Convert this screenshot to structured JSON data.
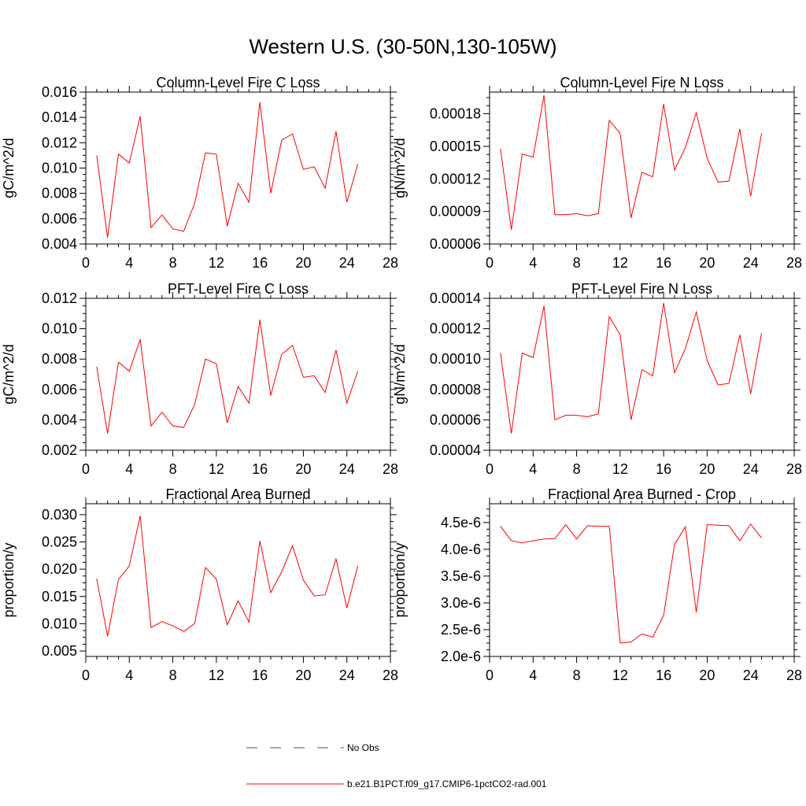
{
  "figure": {
    "title": "Western U.S. (30-50N,130-105W)"
  },
  "chart_data": [
    {
      "type": "line",
      "title": "Column-Level Fire C Loss",
      "xlabel": "",
      "ylabel": "gC/m^2/d",
      "xlim": [
        0,
        28
      ],
      "ylim": [
        0.004,
        0.016
      ],
      "xticks": [
        0,
        4,
        8,
        12,
        16,
        20,
        24,
        28
      ],
      "yticks": [
        0.004,
        0.006,
        0.008,
        0.01,
        0.012,
        0.014,
        0.016
      ],
      "ytick_labels": [
        "0.004",
        "0.006",
        "0.008",
        "0.010",
        "0.012",
        "0.014",
        "0.016"
      ],
      "x": [
        1,
        2,
        3,
        4,
        5,
        6,
        7,
        8,
        9,
        10,
        11,
        12,
        13,
        14,
        15,
        16,
        17,
        18,
        19,
        20,
        21,
        22,
        23,
        24,
        25
      ],
      "series": [
        {
          "color": "#ff0000",
          "values": [
            0.011,
            0.0045,
            0.0111,
            0.0104,
            0.0141,
            0.0053,
            0.0063,
            0.0052,
            0.005,
            0.0072,
            0.0112,
            0.0111,
            0.0054,
            0.0088,
            0.0073,
            0.0152,
            0.008,
            0.0122,
            0.0127,
            0.0099,
            0.0101,
            0.0084,
            0.0129,
            0.0073,
            0.0103
          ]
        }
      ]
    },
    {
      "type": "line",
      "title": "Column-Level Fire N Loss",
      "xlabel": "",
      "ylabel": "gN/m^2/d",
      "xlim": [
        0,
        28
      ],
      "ylim": [
        6e-05,
        0.0002
      ],
      "xticks": [
        0,
        4,
        8,
        12,
        16,
        20,
        24,
        28
      ],
      "yticks": [
        6e-05,
        9e-05,
        0.00012,
        0.00015,
        0.00018
      ],
      "ytick_labels": [
        "0.00006",
        "0.00009",
        "0.00012",
        "0.00015",
        "0.00018"
      ],
      "x": [
        1,
        2,
        3,
        4,
        5,
        6,
        7,
        8,
        9,
        10,
        11,
        12,
        13,
        14,
        15,
        16,
        17,
        18,
        19,
        20,
        21,
        22,
        23,
        24,
        25
      ],
      "series": [
        {
          "color": "#ff0000",
          "values": [
            0.000148,
            7.3e-05,
            0.000143,
            0.00014,
            0.000197,
            8.7e-05,
            8.7e-05,
            8.8e-05,
            8.6e-05,
            8.8e-05,
            0.000174,
            0.000162,
            8.4e-05,
            0.000126,
            0.000122,
            0.000189,
            0.000128,
            0.000149,
            0.000181,
            0.000139,
            0.000117,
            0.000118,
            0.000166,
            0.000104,
            0.000162
          ]
        }
      ]
    },
    {
      "type": "line",
      "title": "PFT-Level Fire C Loss",
      "xlabel": "",
      "ylabel": "gC/m^2/d",
      "xlim": [
        0,
        28
      ],
      "ylim": [
        0.002,
        0.012
      ],
      "xticks": [
        0,
        4,
        8,
        12,
        16,
        20,
        24,
        28
      ],
      "yticks": [
        0.002,
        0.004,
        0.006,
        0.008,
        0.01,
        0.012
      ],
      "ytick_labels": [
        "0.002",
        "0.004",
        "0.006",
        "0.008",
        "0.010",
        "0.012"
      ],
      "x": [
        1,
        2,
        3,
        4,
        5,
        6,
        7,
        8,
        9,
        10,
        11,
        12,
        13,
        14,
        15,
        16,
        17,
        18,
        19,
        20,
        21,
        22,
        23,
        24,
        25
      ],
      "series": [
        {
          "color": "#ff0000",
          "values": [
            0.0075,
            0.0031,
            0.0078,
            0.0072,
            0.0093,
            0.0036,
            0.0045,
            0.0036,
            0.0035,
            0.005,
            0.008,
            0.0077,
            0.0038,
            0.0062,
            0.0051,
            0.0106,
            0.0056,
            0.0083,
            0.0089,
            0.0068,
            0.0069,
            0.0058,
            0.0086,
            0.0051,
            0.0072
          ]
        }
      ]
    },
    {
      "type": "line",
      "title": "PFT-Level Fire N Loss",
      "xlabel": "",
      "ylabel": "gN/m^2/d",
      "xlim": [
        0,
        28
      ],
      "ylim": [
        4e-05,
        0.00014
      ],
      "xticks": [
        0,
        4,
        8,
        12,
        16,
        20,
        24,
        28
      ],
      "yticks": [
        4e-05,
        6e-05,
        8e-05,
        0.0001,
        0.00012,
        0.00014
      ],
      "ytick_labels": [
        "0.00004",
        "0.00006",
        "0.00008",
        "0.00010",
        "0.00012",
        "0.00014"
      ],
      "x": [
        1,
        2,
        3,
        4,
        5,
        6,
        7,
        8,
        9,
        10,
        11,
        12,
        13,
        14,
        15,
        16,
        17,
        18,
        19,
        20,
        21,
        22,
        23,
        24,
        25
      ],
      "series": [
        {
          "color": "#ff0000",
          "values": [
            0.000104,
            5.1e-05,
            0.000104,
            0.000101,
            0.000135,
            6e-05,
            6.3e-05,
            6.3e-05,
            6.2e-05,
            6.4e-05,
            0.000128,
            0.000116,
            6e-05,
            9.3e-05,
            8.9e-05,
            0.000137,
            9.1e-05,
            0.000107,
            0.000131,
            9.9e-05,
            8.3e-05,
            8.4e-05,
            0.000116,
            7.7e-05,
            0.000117
          ]
        }
      ]
    },
    {
      "type": "line",
      "title": "Fractional Area Burned",
      "xlabel": "",
      "ylabel": "proportion/y",
      "xlim": [
        0,
        28
      ],
      "ylim": [
        0.004,
        0.032
      ],
      "xticks": [
        0,
        4,
        8,
        12,
        16,
        20,
        24,
        28
      ],
      "yticks": [
        0.005,
        0.01,
        0.015,
        0.02,
        0.025,
        0.03
      ],
      "ytick_labels": [
        "0.005",
        "0.010",
        "0.015",
        "0.020",
        "0.025",
        "0.030"
      ],
      "x": [
        1,
        2,
        3,
        4,
        5,
        6,
        7,
        8,
        9,
        10,
        11,
        12,
        13,
        14,
        15,
        16,
        17,
        18,
        19,
        20,
        21,
        22,
        23,
        24,
        25
      ],
      "series": [
        {
          "color": "#ff0000",
          "values": [
            0.0183,
            0.0077,
            0.0181,
            0.0206,
            0.0298,
            0.0093,
            0.0104,
            0.0096,
            0.0086,
            0.01,
            0.0203,
            0.0182,
            0.0098,
            0.0142,
            0.0103,
            0.0252,
            0.0157,
            0.0195,
            0.0243,
            0.018,
            0.0151,
            0.0153,
            0.0219,
            0.0129,
            0.0206
          ]
        }
      ]
    },
    {
      "type": "line",
      "title": "Fractional Area Burned - Crop",
      "xlabel": "",
      "ylabel": "proportion/y",
      "xlim": [
        0,
        28
      ],
      "ylim": [
        2e-06,
        4.85e-06
      ],
      "xticks": [
        0,
        4,
        8,
        12,
        16,
        20,
        24,
        28
      ],
      "yticks": [
        2e-06,
        2.5e-06,
        3e-06,
        3.5e-06,
        4e-06,
        4.5e-06
      ],
      "ytick_labels": [
        "2.0e-6",
        "2.5e-6",
        "3.0e-6",
        "3.5e-6",
        "4.0e-6",
        "4.5e-6"
      ],
      "x": [
        1,
        2,
        3,
        4,
        5,
        6,
        7,
        8,
        9,
        10,
        11,
        12,
        13,
        14,
        15,
        16,
        17,
        18,
        19,
        20,
        21,
        22,
        23,
        24,
        25
      ],
      "series": [
        {
          "color": "#ff0000",
          "values": [
            4.43e-06,
            4.16e-06,
            4.12e-06,
            4.16e-06,
            4.19e-06,
            4.2e-06,
            4.46e-06,
            4.19e-06,
            4.44e-06,
            4.43e-06,
            4.43e-06,
            2.25e-06,
            2.27e-06,
            2.42e-06,
            2.36e-06,
            2.77e-06,
            4.09e-06,
            4.42e-06,
            2.82e-06,
            4.46e-06,
            4.45e-06,
            4.44e-06,
            4.16e-06,
            4.47e-06,
            4.21e-06
          ]
        }
      ]
    }
  ],
  "legend": {
    "placement": "bottom-center",
    "items": [
      {
        "label": "No Obs",
        "color": "#4a4a9a",
        "style": "dashed"
      },
      {
        "label": "b.e21.B1PCT.f09_g17.CMIP6-1pctCO2-rad.001",
        "color": "#ff0000",
        "style": "solid"
      }
    ]
  }
}
